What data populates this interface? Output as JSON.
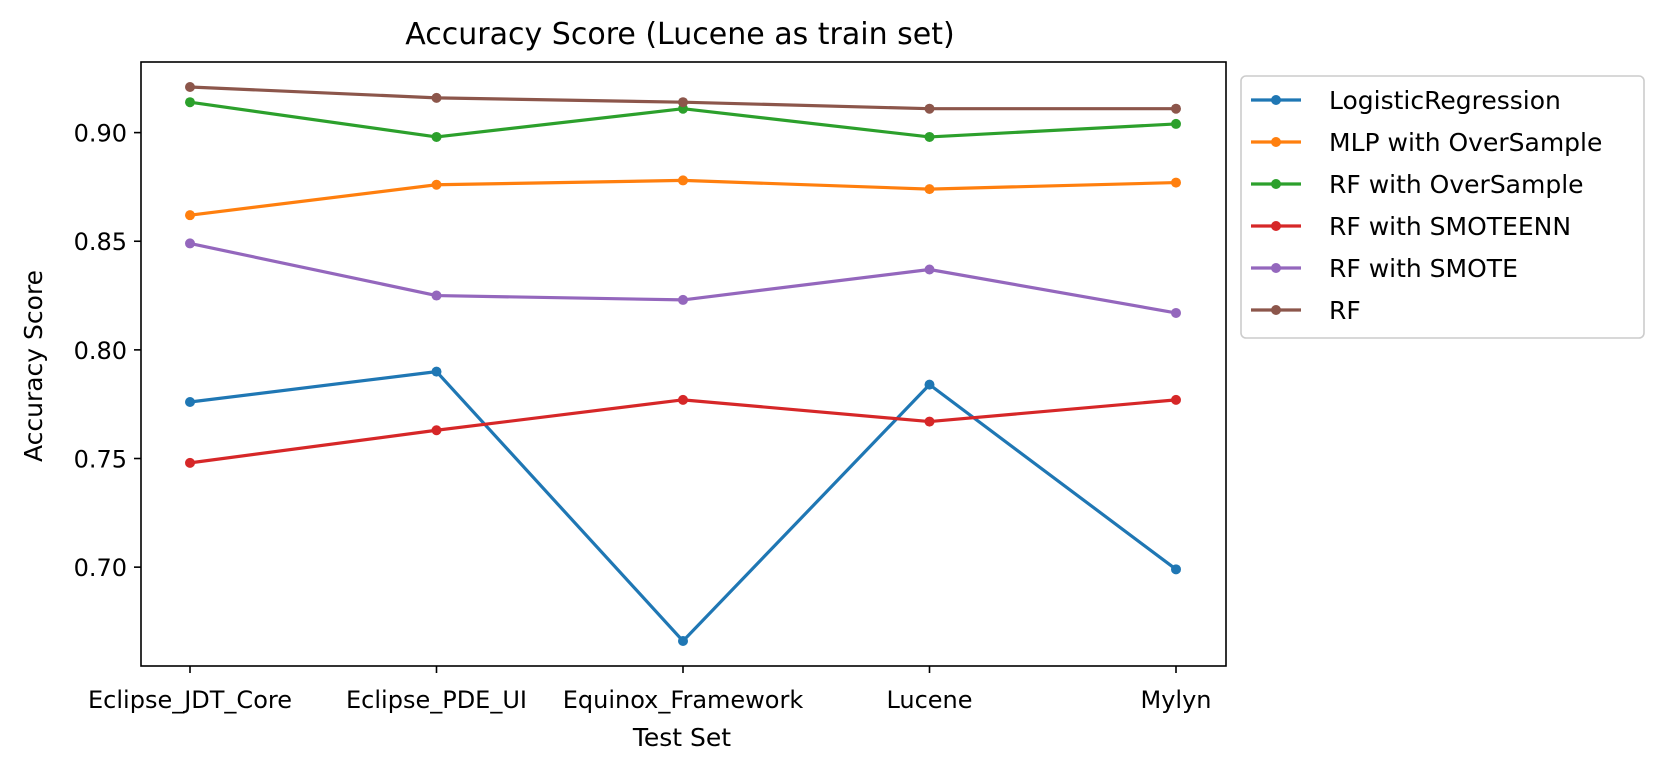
{
  "chart_data": {
    "type": "line",
    "title": "Accuracy Score (Lucene as train set)",
    "xlabel": "Test Set",
    "ylabel": "Accuracy Score",
    "categories": [
      "Eclipse_JDT_Core",
      "Eclipse_PDE_UI",
      "Equinox_Framework",
      "Lucene",
      "Mylyn"
    ],
    "ylim": [
      0.6545,
      0.9325
    ],
    "yticks": [
      0.7,
      0.75,
      0.8,
      0.85,
      0.9
    ],
    "ytick_labels": [
      "0.70",
      "0.75",
      "0.80",
      "0.85",
      "0.90"
    ],
    "grid": false,
    "legend_position": "outside-right-top",
    "series": [
      {
        "name": "LogisticRegression",
        "color": "#1f77b4",
        "values": [
          0.776,
          0.79,
          0.666,
          0.784,
          0.699
        ]
      },
      {
        "name": "MLP with OverSample",
        "color": "#ff7f0e",
        "values": [
          0.862,
          0.876,
          0.878,
          0.874,
          0.877
        ]
      },
      {
        "name": "RF with OverSample",
        "color": "#2ca02c",
        "values": [
          0.914,
          0.898,
          0.911,
          0.898,
          0.904
        ]
      },
      {
        "name": "RF with SMOTEENN",
        "color": "#d62728",
        "values": [
          0.748,
          0.763,
          0.777,
          0.767,
          0.777
        ]
      },
      {
        "name": "RF with SMOTE",
        "color": "#9467bd",
        "values": [
          0.849,
          0.825,
          0.823,
          0.837,
          0.817
        ]
      },
      {
        "name": "RF",
        "color": "#8c564b",
        "values": [
          0.921,
          0.916,
          0.914,
          0.911,
          0.911
        ]
      }
    ]
  }
}
